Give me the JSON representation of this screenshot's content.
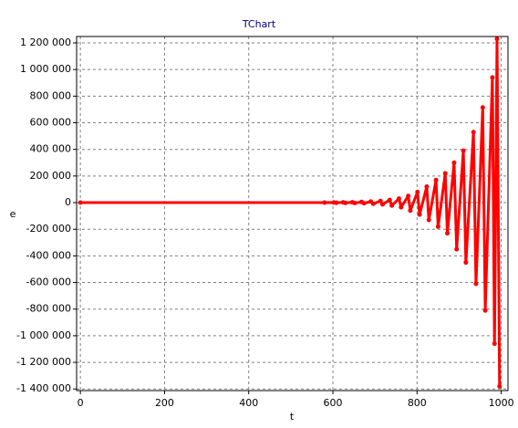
{
  "chart_data": {
    "type": "line",
    "title": "TChart",
    "x_label": "t",
    "y_label": "e",
    "x": [
      0,
      580,
      602,
      608,
      624,
      630,
      646,
      652,
      668,
      674,
      690,
      696,
      713,
      718,
      735,
      740,
      757,
      762,
      779,
      784,
      801,
      806,
      823,
      828,
      845,
      850,
      867,
      872,
      888,
      894,
      910,
      916,
      934,
      940,
      956,
      962,
      979,
      984,
      990,
      996
    ],
    "series": [
      {
        "color": "#ff0000",
        "values": [
          0,
          0,
          1000,
          -1000,
          2000,
          -2000,
          3000,
          -3000,
          5000,
          -5000,
          8000,
          -8000,
          12000,
          -13000,
          20000,
          -22000,
          30000,
          -35000,
          50000,
          -60000,
          80000,
          -90000,
          120000,
          -130000,
          170000,
          -180000,
          220000,
          -230000,
          300000,
          -350000,
          390000,
          -450000,
          530000,
          -610000,
          715000,
          -810000,
          940000,
          -1060000,
          1230000,
          -1380000
        ]
      }
    ],
    "xlim": [
      -9,
      1016
    ],
    "xticks": [
      0,
      200,
      400,
      600,
      800,
      1000
    ],
    "ylim": [
      -1412000,
      1248000
    ],
    "yticks": [
      {
        "value": 1200000,
        "label": "1 200 000"
      },
      {
        "value": 1000000,
        "label": "1 000 000"
      },
      {
        "value": 800000,
        "label": "800 000"
      },
      {
        "value": 600000,
        "label": "600 000"
      },
      {
        "value": 400000,
        "label": "400 000"
      },
      {
        "value": 200000,
        "label": "200 000"
      },
      0,
      {
        "value": -200000,
        "label": "-200 000"
      },
      {
        "value": -400000,
        "label": "-400 000"
      },
      {
        "value": -600000,
        "label": "-600 000"
      },
      {
        "value": -800000,
        "label": "-800 000"
      },
      {
        "value": -1000000,
        "label": "-1 000 000"
      },
      {
        "value": -1200000,
        "label": "-1 200 000"
      },
      {
        "value": -1400000,
        "label": "-1 400 000"
      }
    ],
    "grid": true
  }
}
